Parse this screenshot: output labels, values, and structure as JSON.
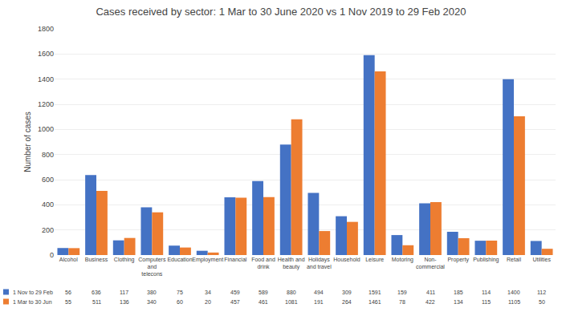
{
  "chart_data": {
    "type": "bar",
    "title": "Cases received by sector: 1 Mar to 30 June 2020 vs 1 Nov 2019 to 29 Feb 2020",
    "ylabel": "Number of cases",
    "categories": [
      "Alcohol",
      "Business",
      "Clothing",
      "Computers\nand\ntelecons",
      "Education",
      "Employment",
      "Financial",
      "Food and\ndrink",
      "Health and\nbeauty",
      "Holidays\nand travel",
      "Household",
      "Leisure",
      "Motoring",
      "Non-\ncommercial",
      "Property",
      "Publishing",
      "Retail",
      "Utilities"
    ],
    "series": [
      {
        "name": "1 Nov to 29 Feb",
        "color": "#4472C4",
        "values": [
          56,
          636,
          117,
          380,
          75,
          34,
          459,
          589,
          880,
          494,
          309,
          1591,
          159,
          411,
          185,
          114,
          1400,
          112
        ]
      },
      {
        "name": "1 Mar to 30 Jun",
        "color": "#ED7D31",
        "values": [
          55,
          511,
          136,
          340,
          60,
          20,
          457,
          461,
          1081,
          191,
          264,
          1461,
          78,
          422,
          134,
          115,
          1105,
          50
        ]
      }
    ],
    "ylim": [
      0,
      1800
    ],
    "yticks": [
      0,
      200,
      400,
      600,
      800,
      1000,
      1200,
      1400,
      1600,
      1800
    ],
    "grid": true,
    "data_labels": true
  }
}
